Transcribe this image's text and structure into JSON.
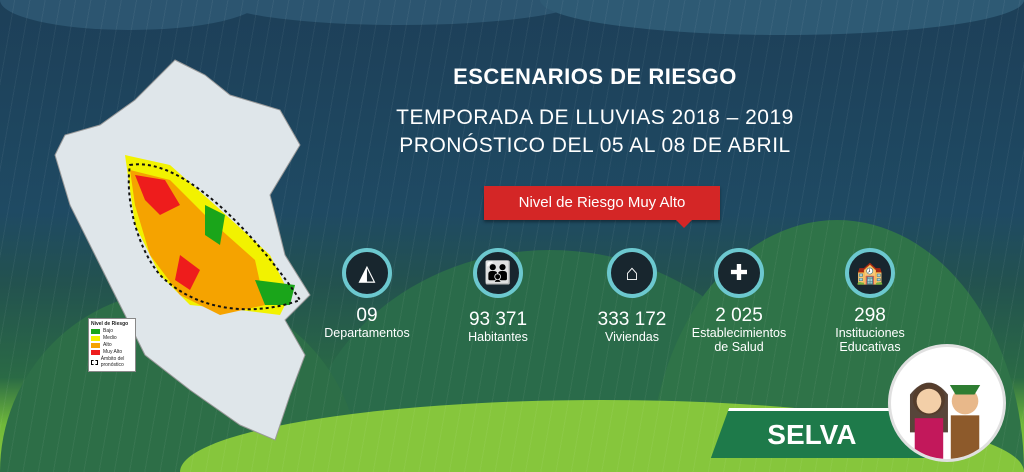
{
  "header": {
    "title": "ESCENARIOS DE RIESGO",
    "subtitle": "TEMPORADA DE LLUVIAS 2018 – 2019",
    "forecast": "PRONÓSTICO DEL 05 AL 08 DE ABRIL"
  },
  "risk_badge": {
    "label": "Nivel de Riesgo Muy Alto",
    "color": "#d42626"
  },
  "legend": {
    "title": "Nivel de Riesgo",
    "items": [
      {
        "label": "Bajo",
        "color": "#1aa51a"
      },
      {
        "label": "Medio",
        "color": "#f2f200"
      },
      {
        "label": "Alto",
        "color": "#f5a300"
      },
      {
        "label": "Muy Alto",
        "color": "#ee1c1c"
      }
    ],
    "note": "Ámbito del pronóstico"
  },
  "stats": [
    {
      "icon": "peru-map-icon",
      "value": "09",
      "label": "Departamentos",
      "label2": ""
    },
    {
      "icon": "family-icon",
      "value": "93 371",
      "label": "Habitantes",
      "label2": ""
    },
    {
      "icon": "houses-icon",
      "value": "333 172",
      "label": "Viviendas",
      "label2": ""
    },
    {
      "icon": "hospital-icon",
      "value": "2 025",
      "label": "Establecimientos",
      "label2": "de Salud"
    },
    {
      "icon": "school-icon",
      "value": "298",
      "label": "Instituciones",
      "label2": "Educativas"
    }
  ],
  "region": {
    "label": "SELVA"
  }
}
